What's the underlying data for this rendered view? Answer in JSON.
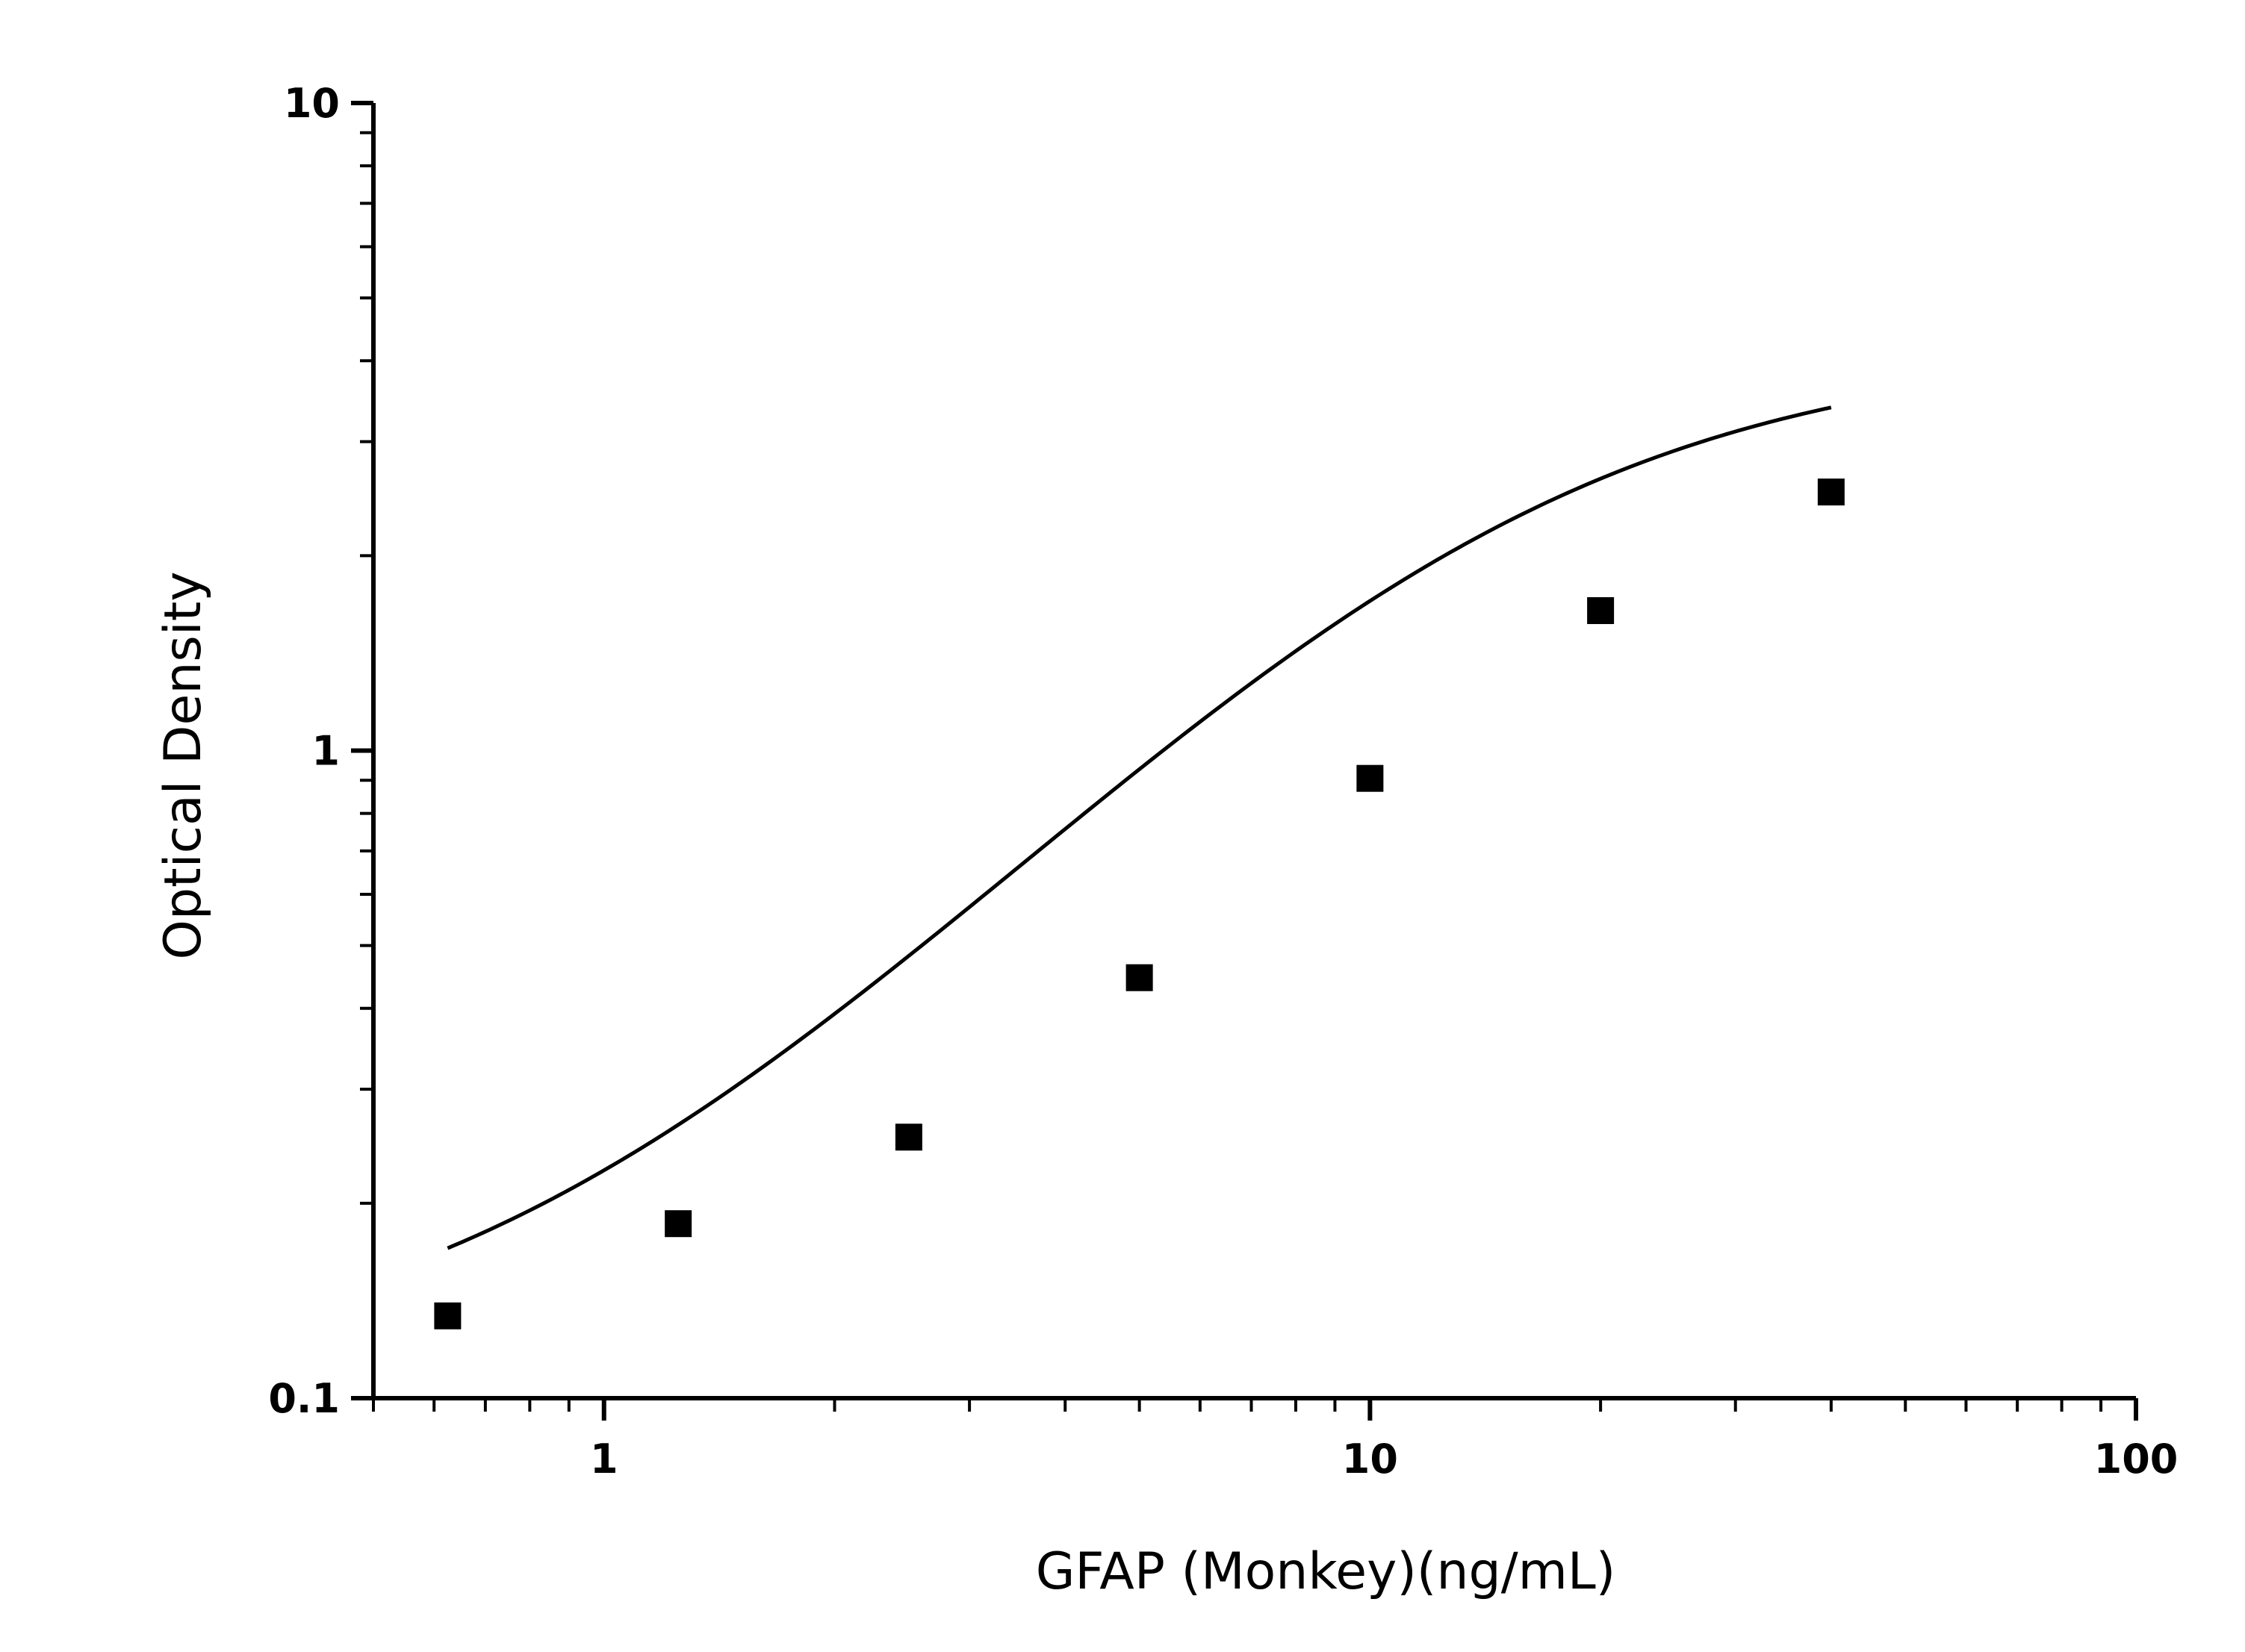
{
  "chart_data": {
    "type": "scatter",
    "xlabel": "GFAP (Monkey)(ng/mL)",
    "ylabel": "Optical Density",
    "x_scale": "log",
    "y_scale": "log",
    "xlim": [
      0.5,
      100
    ],
    "ylim": [
      0.1,
      10
    ],
    "x_ticks": [
      {
        "value": 1,
        "label": "1"
      },
      {
        "value": 10,
        "label": "10"
      },
      {
        "value": 100,
        "label": "100"
      }
    ],
    "y_ticks": [
      {
        "value": 0.1,
        "label": "0.1"
      },
      {
        "value": 1,
        "label": "1"
      },
      {
        "value": 10,
        "label": "10"
      }
    ],
    "grid": false,
    "legend": "none",
    "marker": "square",
    "color": "#000000",
    "points": [
      {
        "x": 0.625,
        "y": 0.134
      },
      {
        "x": 1.25,
        "y": 0.186
      },
      {
        "x": 2.5,
        "y": 0.253
      },
      {
        "x": 5,
        "y": 0.446
      },
      {
        "x": 10,
        "y": 0.906
      },
      {
        "x": 20,
        "y": 1.645
      },
      {
        "x": 40,
        "y": 2.508
      }
    ],
    "fit_curve": {
      "model": "4PL",
      "params": {
        "bottom": 0.106,
        "top": 4.2,
        "ec50": 14.0,
        "hill": 1.33
      }
    }
  }
}
